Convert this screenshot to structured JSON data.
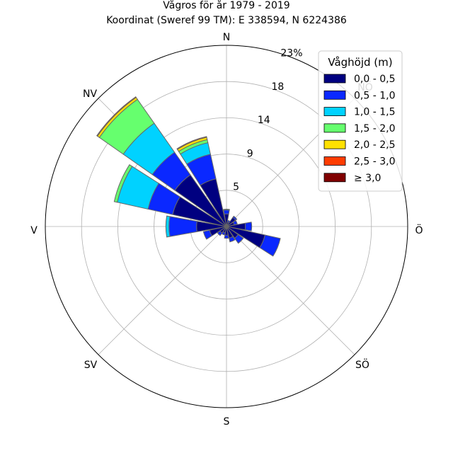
{
  "chart_data": {
    "type": "windrose",
    "title": "Vågros för år 1979 - 2019",
    "subtitle": "Koordinat (Sweref 99 TM): E 338594, N 6224386",
    "direction_labels": [
      "N",
      "NÖ",
      "Ö",
      "SÖ",
      "S",
      "SV",
      "V",
      "NV"
    ],
    "direction_angles_deg": [
      0,
      45,
      90,
      135,
      180,
      225,
      270,
      315
    ],
    "radial_ticks": [
      "5",
      "9",
      "14",
      "18",
      "23%"
    ],
    "radial_tick_values": [
      4.6,
      9.2,
      13.8,
      18.4,
      23
    ],
    "radial_max": 23,
    "legend": {
      "title": "Våghöjd (m)",
      "placement": "top-right",
      "bins": [
        "0,0 - 0,5",
        "0,5 - 1,0",
        "1,0 - 1,5",
        "1,5 - 2,0",
        "2,0 - 2,5",
        "2,5 - 3,0",
        "≥ 3,0"
      ],
      "colors": [
        "#000080",
        "#0a28ff",
        "#00d2ff",
        "#66ff6e",
        "#ffe100",
        "#ff3c00",
        "#800000"
      ]
    },
    "sector_width_deg": 20,
    "sectors": [
      {
        "dir_deg": 0,
        "values": [
          1.6,
          0.5,
          0.1,
          0,
          0,
          0,
          0
        ]
      },
      {
        "dir_deg": 22.5,
        "values": [
          0.6,
          0.2,
          0,
          0,
          0,
          0,
          0
        ]
      },
      {
        "dir_deg": 45,
        "values": [
          1.4,
          0.2,
          0,
          0,
          0,
          0,
          0
        ]
      },
      {
        "dir_deg": 67.5,
        "values": [
          1.0,
          0.4,
          0,
          0,
          0,
          0,
          0
        ]
      },
      {
        "dir_deg": 90,
        "values": [
          2.4,
          0.8,
          0,
          0,
          0,
          0,
          0
        ]
      },
      {
        "dir_deg": 112.5,
        "values": [
          5.0,
          2.0,
          0,
          0,
          0,
          0,
          0
        ]
      },
      {
        "dir_deg": 135,
        "values": [
          1.8,
          0.8,
          0,
          0,
          0,
          0,
          0
        ]
      },
      {
        "dir_deg": 157.5,
        "values": [
          1.5,
          0.5,
          0,
          0,
          0,
          0,
          0
        ]
      },
      {
        "dir_deg": 180,
        "values": [
          1.1,
          0.4,
          0,
          0,
          0,
          0,
          0
        ]
      },
      {
        "dir_deg": 202.5,
        "values": [
          0.8,
          0.3,
          0,
          0,
          0,
          0,
          0
        ]
      },
      {
        "dir_deg": 225,
        "values": [
          1.0,
          0.4,
          0,
          0,
          0,
          0,
          0
        ]
      },
      {
        "dir_deg": 247.5,
        "values": [
          2.2,
          0.8,
          0,
          0,
          0,
          0,
          0
        ]
      },
      {
        "dir_deg": 270,
        "values": [
          3.8,
          3.5,
          0.4,
          0,
          0,
          0,
          0
        ]
      },
      {
        "dir_deg": 292.5,
        "values": [
          7.0,
          3.2,
          4.0,
          0.4,
          0,
          0,
          0
        ]
      },
      {
        "dir_deg": 315,
        "values": [
          8.0,
          3.5,
          4.5,
          3.7,
          0.3,
          0.1,
          0
        ]
      },
      {
        "dir_deg": 337.5,
        "values": [
          6.2,
          3.2,
          1.5,
          0.4,
          0.3,
          0.1,
          0
        ]
      }
    ]
  }
}
